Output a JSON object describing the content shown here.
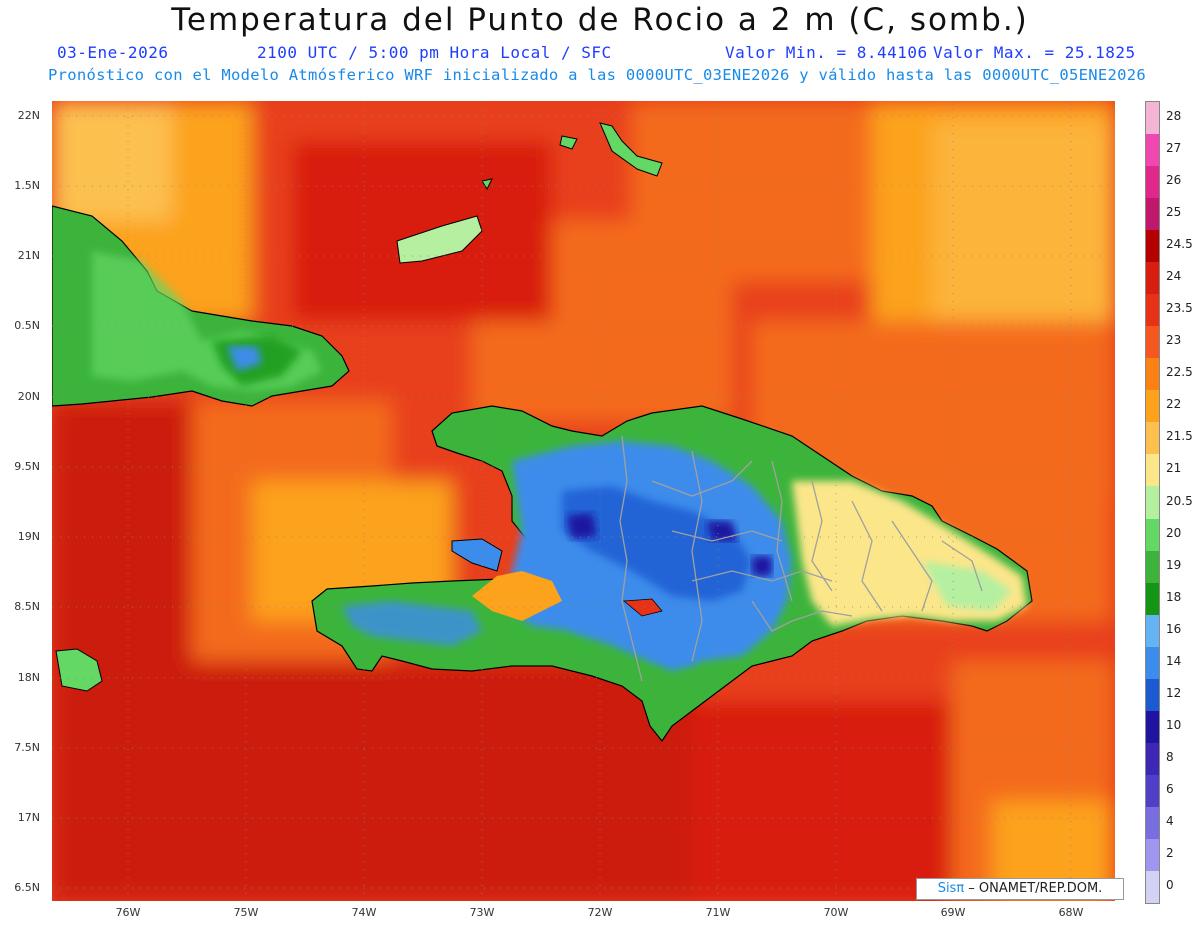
{
  "header": {
    "title": "Temperatura del Punto de Rocio a 2 m (C, somb.)",
    "date": "03-Ene-2026",
    "time": "2100 UTC / 5:00 pm Hora Local / SFC",
    "min": "Valor Min. = 8.44106",
    "max": "Valor Max. = 25.1825",
    "forecast": "Pronóstico con el Modelo Atmósferico WRF inicializado a las 0000UTC_03ENE2026 y válido hasta las 0000UTC_05ENE2026"
  },
  "axes": {
    "lat_labels": [
      "22N",
      "1.5N",
      "21N",
      "0.5N",
      "20N",
      "9.5N",
      "19N",
      "8.5N",
      "18N",
      "7.5N",
      "17N",
      "6.5N"
    ],
    "lon_labels": [
      "76W",
      "75W",
      "74W",
      "73W",
      "72W",
      "71W",
      "70W",
      "69W",
      "68W"
    ]
  },
  "colorbar": {
    "labels": [
      "28",
      "27",
      "26",
      "25",
      "24.5",
      "24",
      "23.5",
      "23",
      "22.5",
      "22",
      "21.5",
      "21",
      "20.5",
      "20",
      "19",
      "18",
      "16",
      "14",
      "12",
      "10",
      "8",
      "6",
      "4",
      "2",
      "0"
    ],
    "colors": [
      "#f4b4d4",
      "#f048b0",
      "#e0288c",
      "#c0186c",
      "#b40000",
      "#d81e10",
      "#e83218",
      "#f4581e",
      "#fa8214",
      "#fca21c",
      "#fcc050",
      "#fce68a",
      "#b4f0a0",
      "#64d864",
      "#3cb43c",
      "#149614",
      "#64b4f4",
      "#3c8ceb",
      "#1c5ad2",
      "#1e14a0",
      "#3c28b4",
      "#5040c8",
      "#786ee0",
      "#a096f0",
      "#d2d2f4"
    ]
  },
  "credit": {
    "brand": "Sisπ",
    "text": " – ONAMET/REP.DOM."
  },
  "colors": {
    "sea_dark_red": "#cc1a10",
    "sea_red": "#e63b18",
    "sea_orange": "#f46a1c",
    "land_green": "#3cb43c",
    "land_blue": "#3c8ceb",
    "border_gray": "#a0a0a0"
  }
}
